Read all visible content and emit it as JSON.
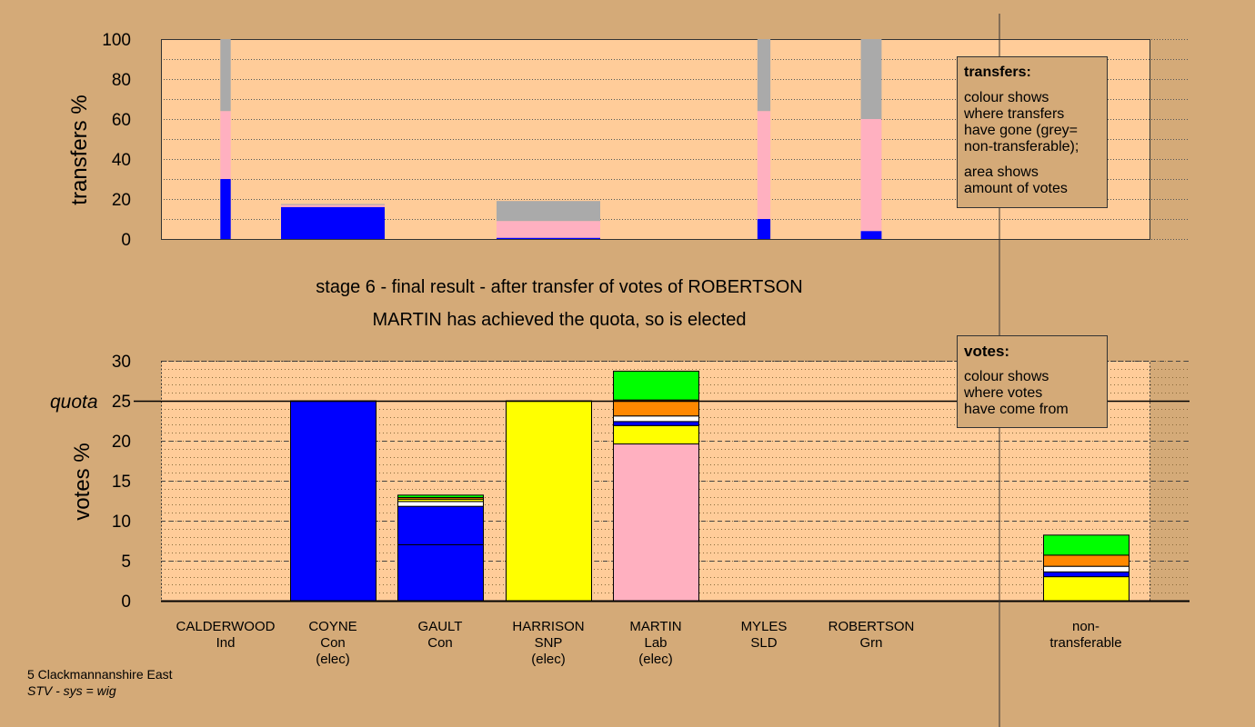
{
  "title_lines": [
    "stage 6 - final result - after transfer of votes of ROBERTSON",
    "MARTIN has achieved the quota, so is elected"
  ],
  "legend_transfers": {
    "heading": "transfers:",
    "line1": "colour shows",
    "line2": "where transfers",
    "line3": "have gone (grey=",
    "line4": "non-transferable);",
    "line5": "area shows",
    "line6": "amount of votes"
  },
  "legend_votes": {
    "heading": "votes:",
    "line1": "colour shows",
    "line2": "where votes",
    "line3": "have come from"
  },
  "caption": {
    "line1": "5 Clackmannanshire East",
    "line2": "STV - sys = wig"
  },
  "colors": {
    "background": "#d4aa78",
    "plot_area": "#ffcc99",
    "Con": "#0000ff",
    "SNP": "#ffff00",
    "Lab": "#ffb0c0",
    "LD": "#ff8800",
    "Grn": "#00ff00",
    "Ind": "#ffffff",
    "nontransferable": "#aaaaaa"
  },
  "chart_data": [
    {
      "type": "bar",
      "name": "transfers",
      "ylabel": "transfers %",
      "ylim": [
        0,
        100
      ],
      "yticks": [
        0,
        20,
        40,
        60,
        80,
        100
      ],
      "grid": true,
      "bars": [
        {
          "candidate": "CALDERWOOD",
          "width_share": 0.2,
          "segments": [
            {
              "to": "Con",
              "value": 30,
              "color": "#0000ff"
            },
            {
              "to": "Lab",
              "value": 34,
              "color": "#ffb0c0"
            },
            {
              "to": "nontransferable",
              "value": 36,
              "color": "#aaaaaa"
            }
          ]
        },
        {
          "candidate": "COYNE",
          "width_share": 2.0,
          "segments": [
            {
              "to": "Con",
              "value": 16,
              "color": "#0000ff"
            },
            {
              "to": "Lab",
              "value": 1,
              "color": "#ffb0c0"
            },
            {
              "to": "nontransferable",
              "value": 0.5,
              "color": "#aaaaaa"
            }
          ]
        },
        {
          "candidate": "HARRISON",
          "width_share": 2.0,
          "segments": [
            {
              "to": "Con",
              "value": 0.6,
              "color": "#0000ff"
            },
            {
              "to": "Lab",
              "value": 8.4,
              "color": "#ffb0c0"
            },
            {
              "to": "nontransferable",
              "value": 10,
              "color": "#aaaaaa"
            }
          ]
        },
        {
          "candidate": "MYLES",
          "width_share": 0.25,
          "segments": [
            {
              "to": "Con",
              "value": 10,
              "color": "#0000ff"
            },
            {
              "to": "Lab",
              "value": 54,
              "color": "#ffb0c0"
            },
            {
              "to": "nontransferable",
              "value": 36,
              "color": "#aaaaaa"
            }
          ]
        },
        {
          "candidate": "ROBERTSON",
          "width_share": 0.4,
          "segments": [
            {
              "to": "Con",
              "value": 4,
              "color": "#0000ff"
            },
            {
              "to": "Lab",
              "value": 56,
              "color": "#ffb0c0"
            },
            {
              "to": "nontransferable",
              "value": 40,
              "color": "#aaaaaa"
            }
          ]
        }
      ]
    },
    {
      "type": "bar",
      "name": "votes",
      "ylabel": "votes %",
      "ylim": [
        0,
        30
      ],
      "yticks": [
        0,
        5,
        10,
        15,
        20,
        25,
        30
      ],
      "quota": 25,
      "quota_label": "quota",
      "grid": true,
      "categories": [
        {
          "name": "CALDERWOOD",
          "party": "Ind",
          "status": ""
        },
        {
          "name": "COYNE",
          "party": "Con",
          "status": "(elec)"
        },
        {
          "name": "GAULT",
          "party": "Con",
          "status": ""
        },
        {
          "name": "HARRISON",
          "party": "SNP",
          "status": "(elec)"
        },
        {
          "name": "MARTIN",
          "party": "Lab",
          "status": "(elec)"
        },
        {
          "name": "MYLES",
          "party": "SLD",
          "status": ""
        },
        {
          "name": "ROBERTSON",
          "party": "Grn",
          "status": ""
        },
        {
          "name": "non-",
          "party": "transferable",
          "status": ""
        }
      ],
      "stacks": [
        [],
        [
          {
            "from": "Con",
            "value": 25.0,
            "color": "#0000ff"
          }
        ],
        [
          {
            "from": "Con",
            "value": 7.0,
            "color": "#0000ff"
          },
          {
            "from": "Con",
            "value": 4.8,
            "color": "#0000ff"
          },
          {
            "from": "Ind",
            "value": 0.6,
            "color": "#ffffff"
          },
          {
            "from": "SNP",
            "value": 0.3,
            "color": "#ffff00"
          },
          {
            "from": "LD",
            "value": 0.2,
            "color": "#ff8800"
          },
          {
            "from": "Grn",
            "value": 0.3,
            "color": "#00ff00"
          }
        ],
        [
          {
            "from": "SNP",
            "value": 25.0,
            "color": "#ffff00"
          }
        ],
        [
          {
            "from": "Lab",
            "value": 19.6,
            "color": "#ffb0c0"
          },
          {
            "from": "SNP",
            "value": 2.3,
            "color": "#ffff00"
          },
          {
            "from": "Con",
            "value": 0.5,
            "color": "#0000ff"
          },
          {
            "from": "Ind",
            "value": 0.7,
            "color": "#ffffff"
          },
          {
            "from": "LD",
            "value": 2.0,
            "color": "#ff8800"
          },
          {
            "from": "Grn",
            "value": 3.6,
            "color": "#00ff00"
          }
        ],
        [],
        [],
        [
          {
            "from": "SNP",
            "value": 3.0,
            "color": "#ffff00"
          },
          {
            "from": "Con",
            "value": 0.6,
            "color": "#0000ff"
          },
          {
            "from": "Ind",
            "value": 0.7,
            "color": "#ffffff"
          },
          {
            "from": "LD",
            "value": 1.4,
            "color": "#ff8800"
          },
          {
            "from": "Grn",
            "value": 2.5,
            "color": "#00ff00"
          }
        ]
      ]
    }
  ]
}
